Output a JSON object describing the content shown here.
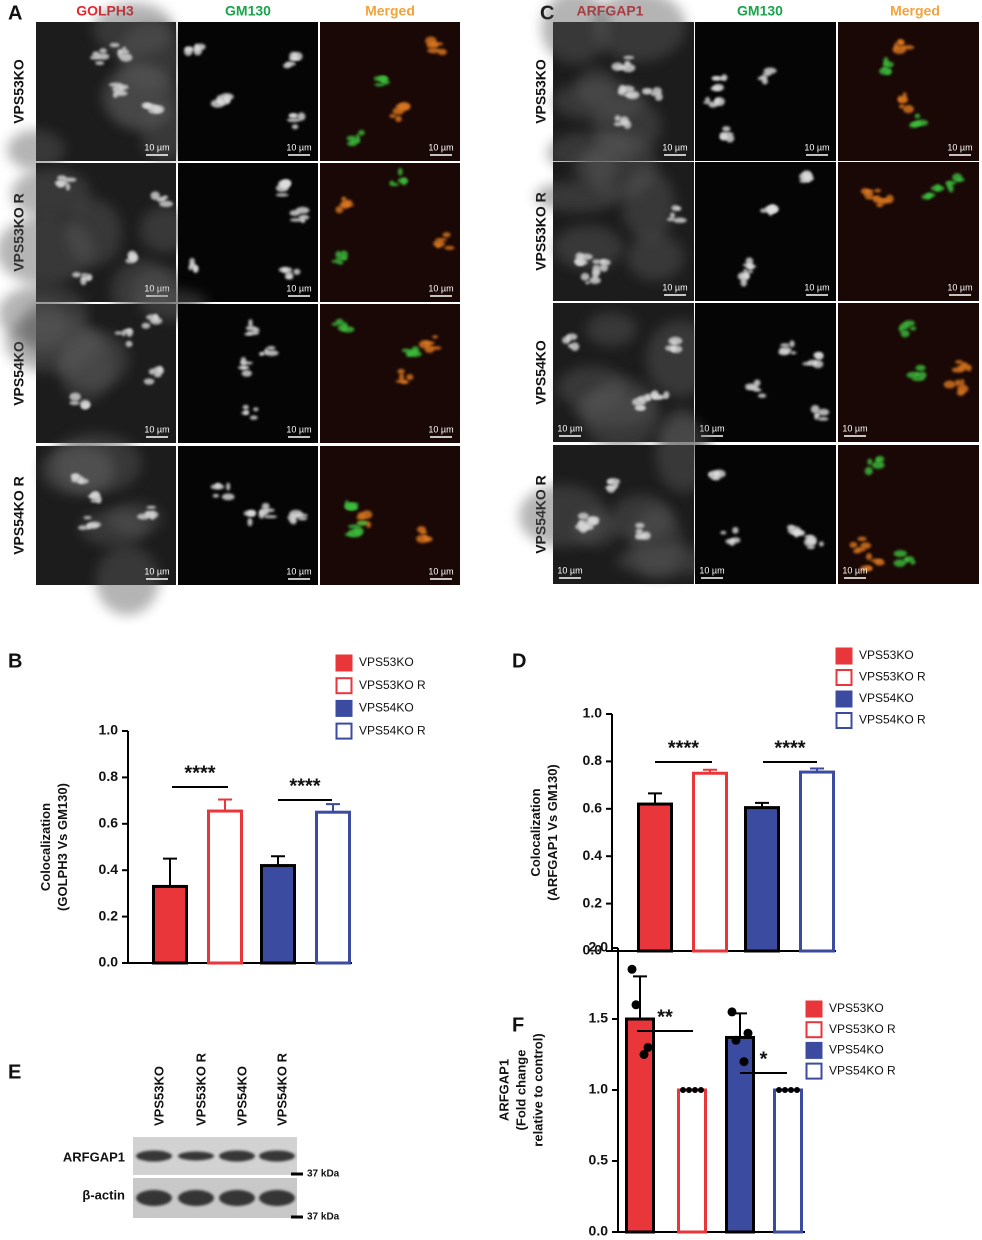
{
  "image_panels": [
    {
      "letter": "A",
      "columns": [
        "GOLPH3",
        "GM130",
        "Merged"
      ],
      "rows": [
        "VPS53KO",
        "VPS53KO R",
        "VPS54KO",
        "VPS54KO R"
      ],
      "scale_bar": "10 µm"
    },
    {
      "letter": "C",
      "columns": [
        "ARFGAP1",
        "GM130",
        "Merged"
      ],
      "rows": [
        "VPS53KO",
        "VPS53KO R",
        "VPS54KO",
        "VPS54KO R"
      ],
      "scale_bar": "10 µm"
    }
  ],
  "chart_data": [
    {
      "type": "bar",
      "letter": "B",
      "ylabel": [
        "Colocalization",
        "(GOLPH3 Vs GM130)"
      ],
      "ylim": [
        0,
        1
      ],
      "yticks": [
        {
          "value": 0,
          "label": "0.0"
        },
        0.2,
        0.4,
        0.6,
        0.8,
        {
          "value": 1,
          "label": "1.0"
        }
      ],
      "annotations": [
        "****",
        "****"
      ],
      "series": [
        {
          "name": "VPS53KO",
          "color": "#e8363b",
          "filled": true,
          "values": [
            0.33
          ],
          "errors": [
            0.12
          ]
        },
        {
          "name": "VPS53KO R",
          "color": "#e8363b",
          "filled": false,
          "values": [
            0.655
          ],
          "errors": [
            0.05
          ]
        },
        {
          "name": "VPS54KO",
          "color": "#3b4ba0",
          "filled": true,
          "values": [
            0.42
          ],
          "errors": [
            0.04
          ]
        },
        {
          "name": "VPS54KO R",
          "color": "#3b4ba0",
          "filled": false,
          "values": [
            0.65
          ],
          "errors": [
            0.035
          ]
        }
      ]
    },
    {
      "type": "bar",
      "letter": "D",
      "ylabel": [
        "Colocalization",
        "(ARFGAP1 Vs GM130)"
      ],
      "ylim": [
        0,
        1
      ],
      "yticks": [
        {
          "value": 0,
          "label": "0.0"
        },
        0.2,
        0.4,
        0.6,
        0.8,
        {
          "value": 1,
          "label": "1.0"
        }
      ],
      "annotations": [
        "****",
        "****"
      ],
      "series": [
        {
          "name": "VPS53KO",
          "color": "#e8363b",
          "filled": true,
          "values": [
            0.62
          ],
          "errors": [
            0.045
          ]
        },
        {
          "name": "VPS53KO R",
          "color": "#e8363b",
          "filled": false,
          "values": [
            0.75
          ],
          "errors": [
            0.015
          ]
        },
        {
          "name": "VPS54KO",
          "color": "#3b4ba0",
          "filled": true,
          "values": [
            0.605
          ],
          "errors": [
            0.02
          ]
        },
        {
          "name": "VPS54KO R",
          "color": "#3b4ba0",
          "filled": false,
          "values": [
            0.755
          ],
          "errors": [
            0.015
          ]
        }
      ]
    },
    {
      "type": "bar",
      "letter": "F",
      "ylabel": [
        "ARFGAP1",
        "(Fold change",
        "relative to control)"
      ],
      "ylim": [
        0,
        2
      ],
      "yticks": [
        {
          "value": 0,
          "label": "0.0"
        },
        0.5,
        {
          "value": 1,
          "label": "1.0"
        },
        1.5,
        {
          "value": 2,
          "label": "2.0"
        }
      ],
      "annotations": [
        "**",
        "*"
      ],
      "series": [
        {
          "name": "VPS53KO",
          "color": "#e8363b",
          "filled": true,
          "values": [
            1.5
          ],
          "errors": [
            0.3
          ],
          "points": [
            1.85,
            1.3,
            1.6,
            1.25
          ]
        },
        {
          "name": "VPS53KO R",
          "color": "#e8363b",
          "filled": false,
          "values": [
            1
          ],
          "errors": [
            0
          ],
          "points": [
            1,
            1,
            1,
            1
          ]
        },
        {
          "name": "VPS54KO",
          "color": "#3b4ba0",
          "filled": true,
          "values": [
            1.37
          ],
          "errors": [
            0.17
          ],
          "points": [
            1.55,
            1.4,
            1.35,
            1.2
          ]
        },
        {
          "name": "VPS54KO R",
          "color": "#3b4ba0",
          "filled": false,
          "values": [
            1
          ],
          "errors": [
            0
          ],
          "points": [
            1,
            1,
            1,
            1
          ]
        }
      ]
    }
  ],
  "blot": {
    "letter": "E",
    "lanes": [
      "VPS53KO",
      "VPS53KO R",
      "VPS54KO",
      "VPS54KO R"
    ],
    "proteins": [
      "ARFGAP1",
      "β-actin"
    ],
    "markers": [
      "37 kDa",
      "37 kDa"
    ]
  }
}
